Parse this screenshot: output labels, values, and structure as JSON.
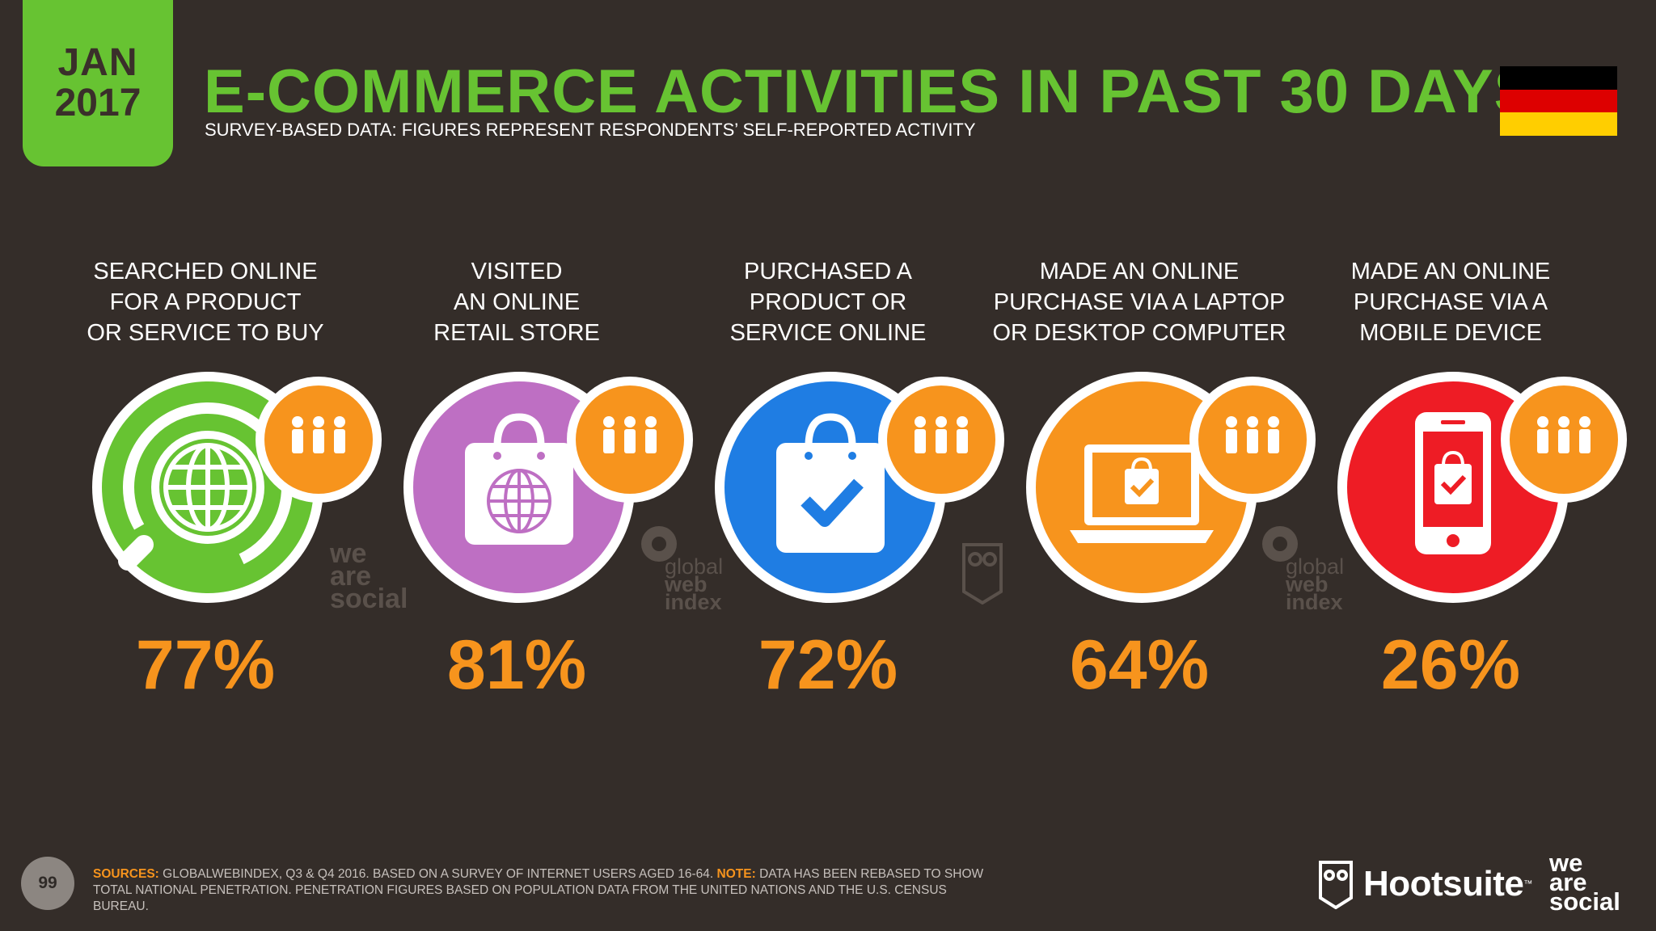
{
  "header": {
    "month": "JAN",
    "year": "2017",
    "title": "E-COMMERCE ACTIVITIES IN PAST 30 DAYS",
    "subtitle": "SURVEY-BASED DATA: FIGURES REPRESENT RESPONDENTS’ SELF-REPORTED ACTIVITY"
  },
  "flag": {
    "colors": [
      "#000000",
      "#dd0000",
      "#ffce00"
    ]
  },
  "stats": [
    {
      "label": "SEARCHED ONLINE\nFOR A PRODUCT\nOR SERVICE TO BUY",
      "value": "77%",
      "color": "#67c332",
      "icon": "globe-search-icon"
    },
    {
      "label": "VISITED\nAN ONLINE\nRETAIL STORE",
      "value": "81%",
      "color": "#be6fc3",
      "icon": "shopping-bag-globe-icon"
    },
    {
      "label": "PURCHASED A\nPRODUCT OR\nSERVICE ONLINE",
      "value": "72%",
      "color": "#1f7de3",
      "icon": "shopping-bag-check-icon"
    },
    {
      "label": "MADE AN ONLINE\nPURCHASE VIA A LAPTOP\nOR DESKTOP COMPUTER",
      "value": "64%",
      "color": "#f7941d",
      "icon": "laptop-bag-icon"
    },
    {
      "label": "MADE AN ONLINE\nPURCHASE VIA A\nMOBILE DEVICE",
      "value": "26%",
      "color": "#ee1c25",
      "icon": "phone-bag-icon"
    }
  ],
  "watermarks": {
    "was": [
      "we",
      "are",
      "social"
    ],
    "gwi": [
      "global",
      "web",
      "index"
    ]
  },
  "footer": {
    "page_number": "99",
    "sources_key": "SOURCES:",
    "sources_text": " GLOBALWEBINDEX, Q3 & Q4 2016. BASED ON A SURVEY OF INTERNET USERS AGED 16-64. ",
    "note_key": "NOTE:",
    "note_text": " DATA HAS BEEN REBASED TO SHOW TOTAL NATIONAL PENETRATION. PENETRATION FIGURES BASED ON POPULATION DATA FROM THE UNITED NATIONS AND THE U.S. CENSUS BUREAU.",
    "hootsuite": "Hootsuite",
    "hootsuite_tm": "™",
    "was_logo": [
      "we",
      "are",
      "social"
    ]
  }
}
